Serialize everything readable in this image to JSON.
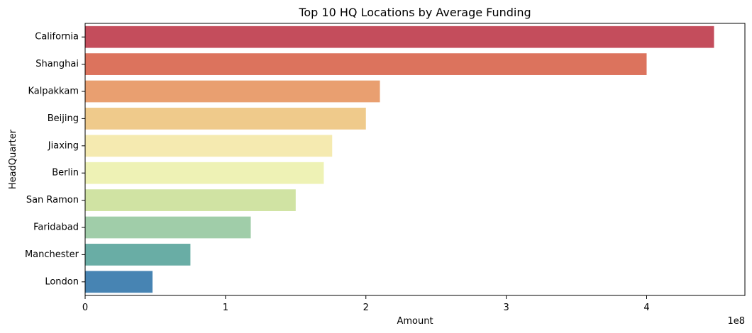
{
  "chart_data": {
    "type": "bar",
    "orientation": "horizontal",
    "title": "Top 10 HQ Locations by Average Funding",
    "xlabel": "Amount",
    "ylabel": "HeadQuarter",
    "x_offset_label": "1e8",
    "x_scale": 100000000,
    "xlim": [
      0,
      470000000
    ],
    "x_ticks": [
      0,
      100000000,
      200000000,
      300000000,
      400000000
    ],
    "x_tick_labels": [
      "0",
      "1",
      "2",
      "3",
      "4"
    ],
    "grid": false,
    "categories": [
      "California",
      "Shanghai",
      "Kalpakkam",
      "Beijing",
      "Jiaxing",
      "Berlin",
      "San Ramon",
      "Faridabad",
      "Manchester",
      "London"
    ],
    "values": [
      448000000,
      400000000,
      210000000,
      200000000,
      176000000,
      170000000,
      150000000,
      118000000,
      75000000,
      48000000
    ],
    "colors": [
      "#c44d5c",
      "#dc735d",
      "#e99f70",
      "#efca8b",
      "#f5eab0",
      "#eef2b5",
      "#d0e3a3",
      "#a0cda9",
      "#69ada5",
      "#4784b3"
    ]
  }
}
